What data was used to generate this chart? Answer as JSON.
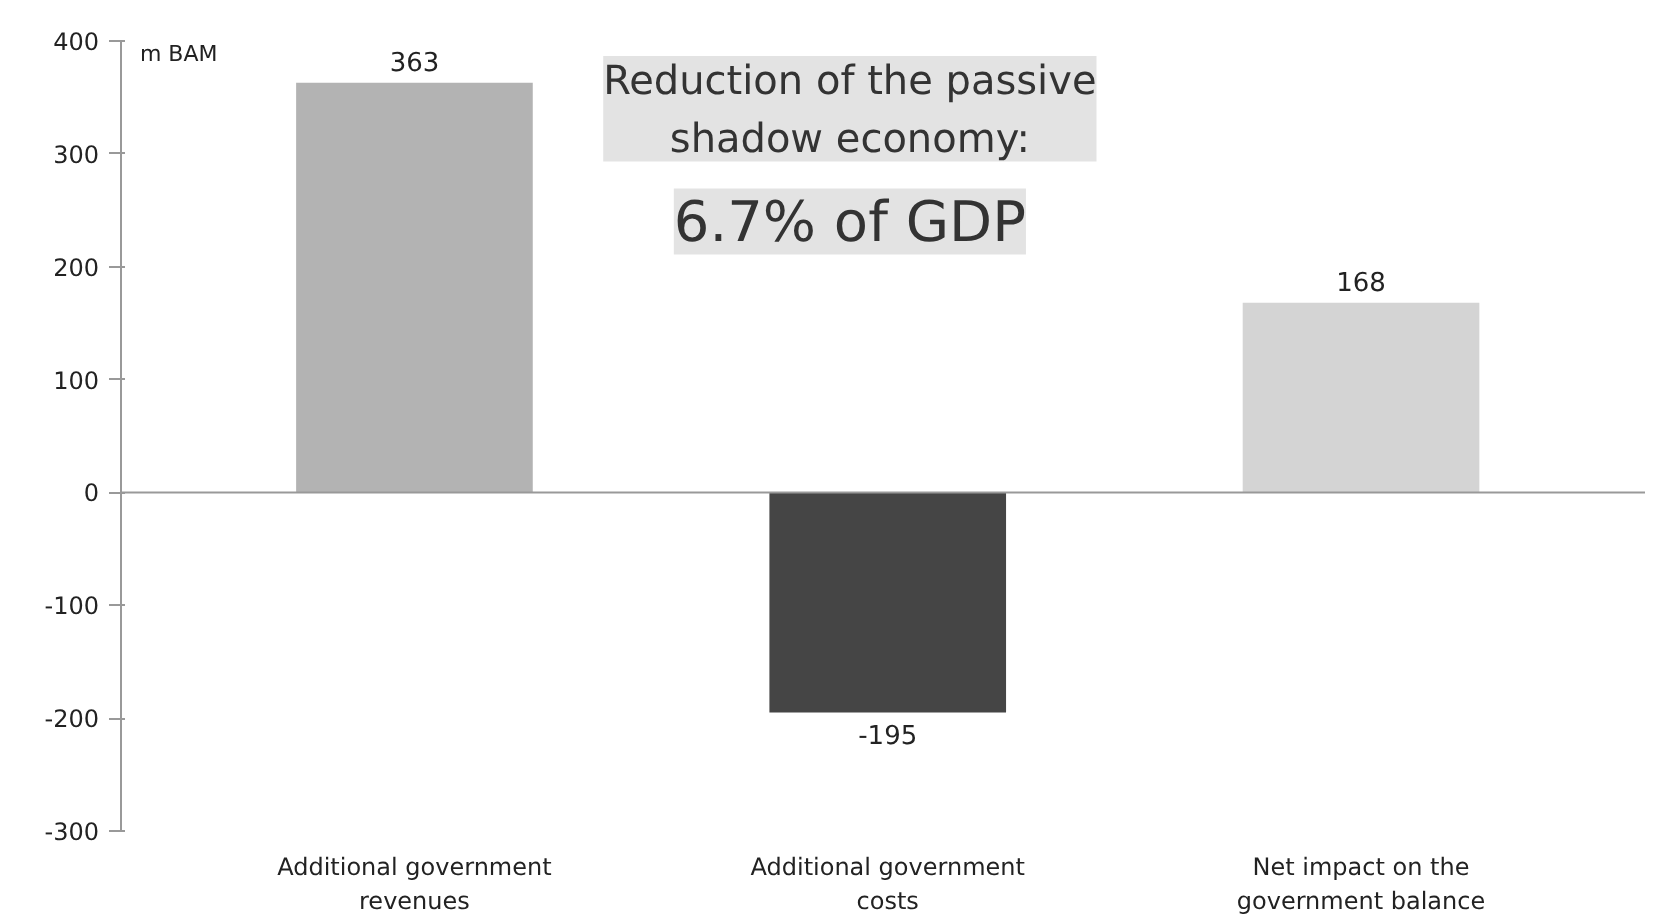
{
  "chart_data": {
    "type": "bar",
    "ylabel": "m BAM",
    "categories": [
      "Additional government\nrevenues",
      "Additional government\ncosts",
      "Net impact on the\ngovernment balance"
    ],
    "values": [
      363,
      -195,
      168
    ],
    "colors": [
      "#b3b3b3",
      "#454545",
      "#d4d4d4"
    ],
    "ylim": [
      -300,
      400
    ],
    "yticks": [
      -300,
      -200,
      -100,
      0,
      100,
      200,
      300,
      400
    ],
    "data_labels": true,
    "annotations": [
      "Reduction of the passive\nshadow economy:",
      "6.7% of GDP"
    ]
  }
}
